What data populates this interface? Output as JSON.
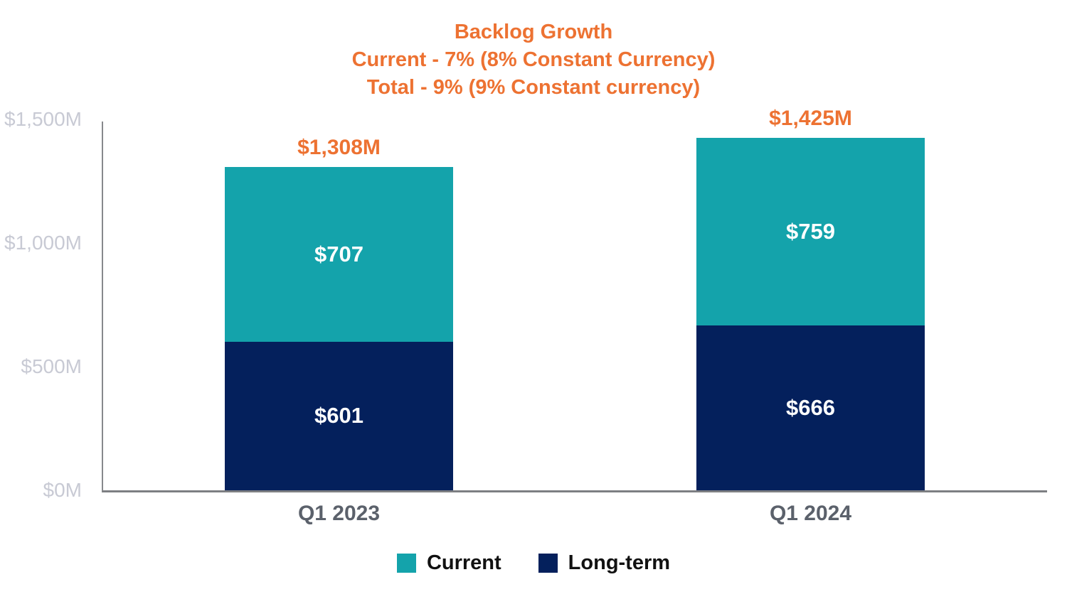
{
  "title": {
    "line1": "Backlog Growth",
    "line2": "Current - 7% (8% Constant Currency)",
    "line3": "Total - 9% (9% Constant currency)"
  },
  "colors": {
    "accent_orange": "#ed7232",
    "teal": "#14a3ab",
    "navy": "#04205c",
    "tick_gray": "#c8cad4",
    "axis_gray": "#87898c",
    "xlabel_gray": "#5b616b",
    "legend_text": "#111111"
  },
  "chart_data": {
    "type": "bar",
    "stacked": true,
    "title": "Backlog Growth\nCurrent - 7% (8% Constant Currency)\nTotal - 9% (9% Constant currency)",
    "categories": [
      "Q1 2023",
      "Q1 2024"
    ],
    "series": [
      {
        "name": "Current",
        "values": [
          707,
          759
        ],
        "labels": [
          "$707",
          "$759"
        ]
      },
      {
        "name": "Long-term",
        "values": [
          601,
          666
        ],
        "labels": [
          "$601",
          "$666"
        ]
      }
    ],
    "totals": [
      1308,
      1425
    ],
    "total_labels": [
      "$1,308M",
      "$1,425M"
    ],
    "ylim": [
      0,
      1500
    ],
    "yticks": [
      {
        "value": 0,
        "label": "$0M"
      },
      {
        "value": 500,
        "label": "$500M"
      },
      {
        "value": 1000,
        "label": "$1,000M"
      },
      {
        "value": 1500,
        "label": "$1,500M"
      }
    ],
    "grid": false,
    "legend_position": "bottom"
  },
  "legend": {
    "items": [
      {
        "label": "Current"
      },
      {
        "label": "Long-term"
      }
    ]
  }
}
